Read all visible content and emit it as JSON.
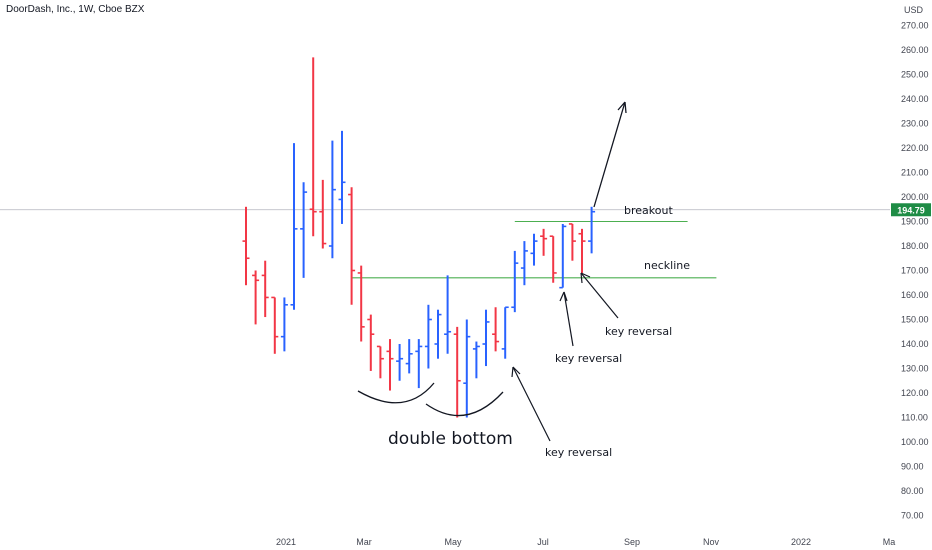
{
  "header": {
    "title": "DoorDash, Inc., 1W, Cboe BZX"
  },
  "chart_data": {
    "type": "ohlc",
    "currency_label": "USD",
    "price_axis": {
      "ylim": [
        65,
        275
      ],
      "ticks": [
        "270.00",
        "260.00",
        "250.00",
        "240.00",
        "230.00",
        "220.00",
        "210.00",
        "200.00",
        "190.00",
        "180.00",
        "170.00",
        "160.00",
        "150.00",
        "140.00",
        "130.00",
        "120.00",
        "110.00",
        "100.00",
        "90.00",
        "80.00",
        "70.00"
      ]
    },
    "time_axis": {
      "ticks": [
        "2021",
        "Mar",
        "May",
        "Jul",
        "Sep",
        "Nov",
        "2022",
        "Ma"
      ]
    },
    "last_price": {
      "value": 194.79,
      "label": "194.79",
      "color": "#1e8c45"
    },
    "colors": {
      "up": "#2962ff",
      "down": "#f23645",
      "level": "#4caf50",
      "crosshair": "#b2b5be"
    },
    "bars": [
      {
        "o": 182,
        "h": 196,
        "l": 164,
        "c": 175
      },
      {
        "o": 168,
        "h": 170,
        "l": 148,
        "c": 166
      },
      {
        "o": 168,
        "h": 174,
        "l": 151,
        "c": 159
      },
      {
        "o": 159,
        "h": 159,
        "l": 136,
        "c": 143
      },
      {
        "o": 143,
        "h": 159,
        "l": 137,
        "c": 156
      },
      {
        "o": 156,
        "h": 222,
        "l": 154,
        "c": 187
      },
      {
        "o": 187,
        "h": 206,
        "l": 167,
        "c": 202
      },
      {
        "o": 195,
        "h": 257,
        "l": 184,
        "c": 194
      },
      {
        "o": 194,
        "h": 207,
        "l": 179,
        "c": 181
      },
      {
        "o": 180,
        "h": 223,
        "l": 175,
        "c": 203
      },
      {
        "o": 199,
        "h": 227,
        "l": 189,
        "c": 206
      },
      {
        "o": 201,
        "h": 204,
        "l": 156,
        "c": 170
      },
      {
        "o": 169,
        "h": 172,
        "l": 141,
        "c": 147
      },
      {
        "o": 150,
        "h": 152,
        "l": 129,
        "c": 144
      },
      {
        "o": 139,
        "h": 139,
        "l": 126,
        "c": 134
      },
      {
        "o": 137,
        "h": 142,
        "l": 121,
        "c": 134
      },
      {
        "o": 133,
        "h": 140,
        "l": 125,
        "c": 134
      },
      {
        "o": 132,
        "h": 142,
        "l": 128,
        "c": 136
      },
      {
        "o": 137,
        "h": 142,
        "l": 122,
        "c": 139
      },
      {
        "o": 139,
        "h": 156,
        "l": 130,
        "c": 150
      },
      {
        "o": 140,
        "h": 154,
        "l": 134,
        "c": 152
      },
      {
        "o": 144,
        "h": 168,
        "l": 136,
        "c": 145
      },
      {
        "o": 144,
        "h": 147,
        "l": 110,
        "c": 125
      },
      {
        "o": 124,
        "h": 150,
        "l": 110,
        "c": 143
      },
      {
        "o": 138,
        "h": 141,
        "l": 126,
        "c": 139
      },
      {
        "o": 140,
        "h": 154,
        "l": 131,
        "c": 149
      },
      {
        "o": 144,
        "h": 155,
        "l": 137,
        "c": 141
      },
      {
        "o": 138,
        "h": 155,
        "l": 134,
        "c": 155
      },
      {
        "o": 155,
        "h": 178,
        "l": 153,
        "c": 173
      },
      {
        "o": 171,
        "h": 182,
        "l": 164,
        "c": 178
      },
      {
        "o": 177,
        "h": 185,
        "l": 172,
        "c": 182
      },
      {
        "o": 184,
        "h": 187,
        "l": 176,
        "c": 183
      },
      {
        "o": 184,
        "h": 184,
        "l": 165,
        "c": 169
      },
      {
        "o": 163,
        "h": 189,
        "l": 163,
        "c": 188
      },
      {
        "o": 189,
        "h": 189,
        "l": 174,
        "c": 182
      },
      {
        "o": 185,
        "h": 187,
        "l": 169,
        "c": 182
      },
      {
        "o": 182,
        "h": 196,
        "l": 177,
        "c": 194
      }
    ],
    "levels": [
      {
        "name": "neckline",
        "value": 167,
        "from_bar": 11,
        "to_bar": 49
      },
      {
        "name": "breakout",
        "value": 190,
        "from_bar": 28,
        "to_bar": 46
      }
    ],
    "annotations": {
      "double_bottom": "double bottom",
      "key_reversal_1": "key reversal",
      "key_reversal_2": "key reversal",
      "key_reversal_3": "key reversal",
      "neckline": "neckline",
      "breakout": "breakout"
    }
  }
}
